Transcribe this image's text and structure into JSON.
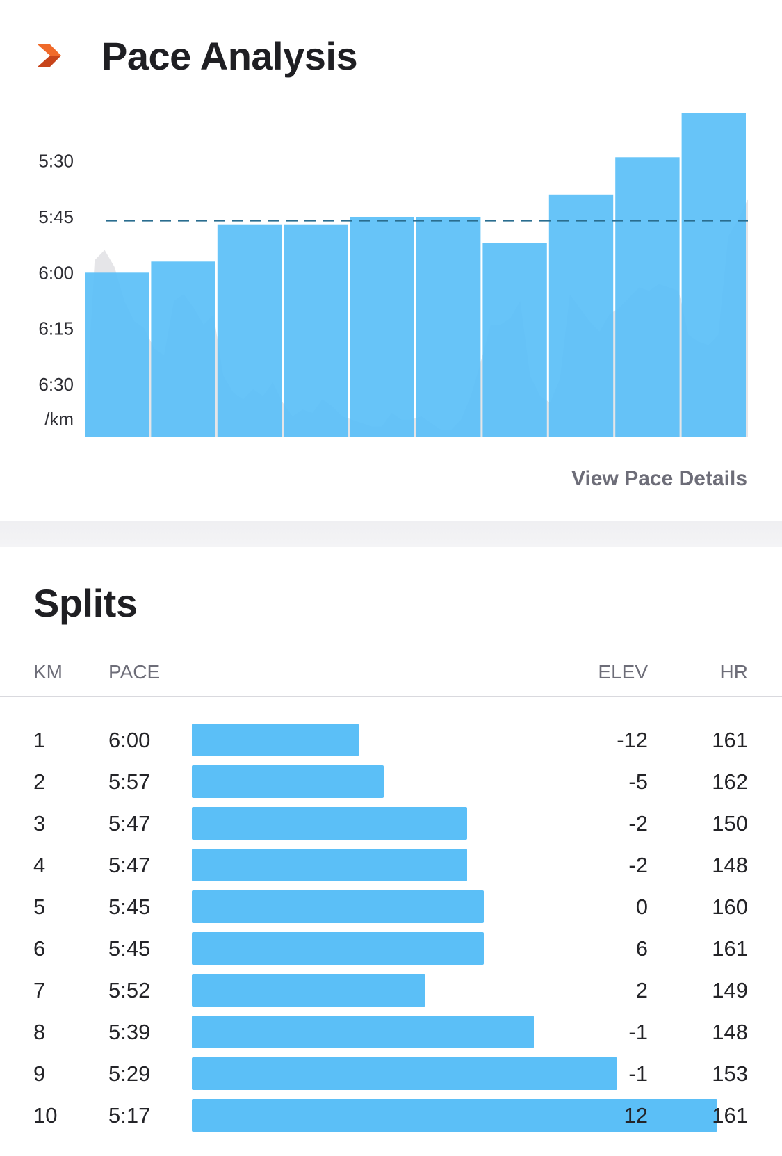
{
  "pace_analysis": {
    "title": "Pace Analysis",
    "view_details_label": "View Pace Details",
    "icon": "chevron-right-icon",
    "accent_color": "#e2541f"
  },
  "chart_data": {
    "type": "bar",
    "categories": [
      "1",
      "2",
      "3",
      "4",
      "5",
      "6",
      "7",
      "8",
      "9",
      "10"
    ],
    "series": [
      {
        "values": [
          "6:00",
          "5:57",
          "5:47",
          "5:47",
          "5:45",
          "5:45",
          "5:52",
          "5:39",
          "5:29",
          "5:17"
        ]
      }
    ],
    "y_tick_labels": [
      "5:30",
      "5:45",
      "6:00",
      "6:15",
      "6:30"
    ],
    "y_unit_label": "/km",
    "y_axis_inverted": true,
    "ylim": [
      "6:44",
      "5:17"
    ],
    "average_pace_line": "5:46",
    "bar_color": "#5bbff7",
    "average_line_color": "#2a6d8f",
    "background_area_color": "#cfcfd6"
  },
  "splits": {
    "title": "Splits",
    "columns": {
      "km": "KM",
      "pace": "PACE",
      "elev": "ELEV",
      "hr": "HR"
    },
    "rows": [
      {
        "km": "1",
        "pace": "6:00",
        "elev": "-12",
        "hr": "161"
      },
      {
        "km": "2",
        "pace": "5:57",
        "elev": "-5",
        "hr": "162"
      },
      {
        "km": "3",
        "pace": "5:47",
        "elev": "-2",
        "hr": "150"
      },
      {
        "km": "4",
        "pace": "5:47",
        "elev": "-2",
        "hr": "148"
      },
      {
        "km": "5",
        "pace": "5:45",
        "elev": "0",
        "hr": "160"
      },
      {
        "km": "6",
        "pace": "5:45",
        "elev": "6",
        "hr": "161"
      },
      {
        "km": "7",
        "pace": "5:52",
        "elev": "2",
        "hr": "149"
      },
      {
        "km": "8",
        "pace": "5:39",
        "elev": "-1",
        "hr": "148"
      },
      {
        "km": "9",
        "pace": "5:29",
        "elev": "-1",
        "hr": "153"
      },
      {
        "km": "10",
        "pace": "5:17",
        "elev": "12",
        "hr": "161"
      }
    ],
    "bar_color": "#5bbff7"
  }
}
